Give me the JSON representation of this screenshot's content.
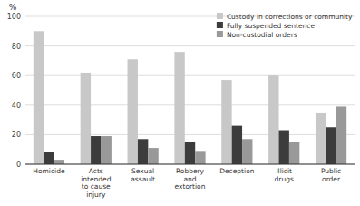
{
  "chart_data": {
    "type": "bar",
    "categories": [
      "Homicide",
      "Acts\nintended\nto cause\ninjury",
      "Sexual\nassault",
      "Robbery\nand\nextortion",
      "Deception",
      "Illicit\ndrugs",
      "Public\norder"
    ],
    "series": [
      {
        "name": "Custody in corrections or community",
        "color": "#c8c8c8",
        "values": [
          90,
          62,
          71,
          76,
          57,
          60,
          35
        ]
      },
      {
        "name": "Fully suspended sentence",
        "color": "#3c3c3c",
        "values": [
          8,
          19,
          17,
          15,
          26,
          23,
          25
        ]
      },
      {
        "name": "Non-custodial orders",
        "color": "#999999",
        "values": [
          3,
          19,
          11,
          9,
          17,
          15,
          39
        ]
      }
    ],
    "ylabel": "%",
    "ylim": [
      0,
      100
    ],
    "yticks": [
      0,
      20,
      40,
      60,
      80,
      100
    ],
    "grid": true,
    "legend": "upper right"
  }
}
